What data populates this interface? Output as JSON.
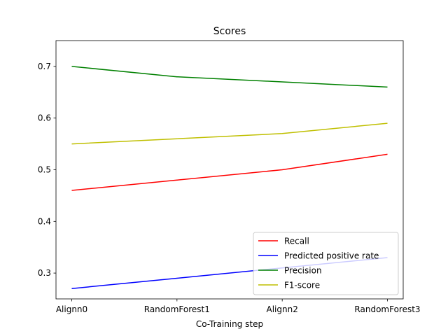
{
  "chart_data": {
    "type": "line",
    "title": "Scores",
    "xlabel": "Co-Training step",
    "ylabel": "",
    "categories": [
      "Alignn0",
      "RandomForest1",
      "Alignn2",
      "RandomForest3"
    ],
    "ylim": [
      0.25,
      0.75
    ],
    "yticks": [
      "0.3",
      "0.4",
      "0.5",
      "0.6",
      "0.7"
    ],
    "grid": false,
    "legend_position": "lower-right",
    "series": [
      {
        "name": "Recall",
        "color": "#ff0000",
        "values": [
          0.46,
          0.48,
          0.5,
          0.53
        ]
      },
      {
        "name": "Predicted positive rate",
        "color": "#0000ff",
        "values": [
          0.27,
          0.29,
          0.31,
          0.33
        ]
      },
      {
        "name": "Precision",
        "color": "#008000",
        "values": [
          0.7,
          0.68,
          0.67,
          0.66
        ]
      },
      {
        "name": "F1-score",
        "color": "#bfbf00",
        "values": [
          0.55,
          0.56,
          0.57,
          0.59
        ]
      }
    ]
  }
}
